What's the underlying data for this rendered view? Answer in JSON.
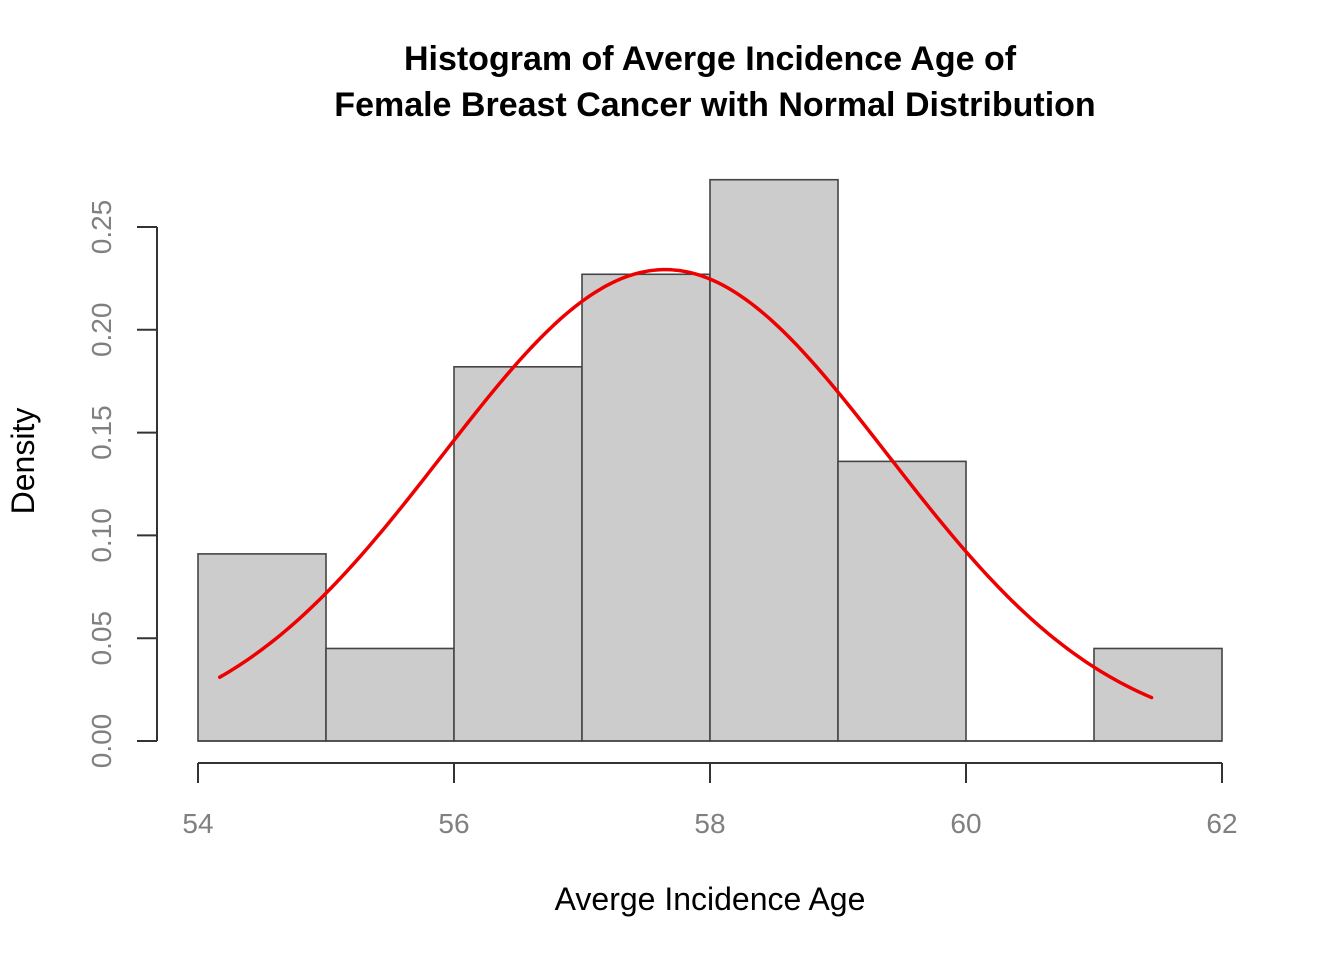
{
  "chart_data": {
    "type": "bar",
    "title": [
      "Histogram of Averge Incidence Age of",
      "Female Breast Cancer with Normal Distribution"
    ],
    "xlabel": "Averge Incidence Age",
    "ylabel": "Density",
    "xlim": [
      54,
      62
    ],
    "ylim": [
      0,
      0.25
    ],
    "x_ticks": [
      "54",
      "56",
      "58",
      "60",
      "62"
    ],
    "y_ticks": [
      "0.00",
      "0.05",
      "0.10",
      "0.15",
      "0.20",
      "0.25"
    ],
    "bins": [
      {
        "start": 54,
        "end": 55,
        "density": 0.091
      },
      {
        "start": 55,
        "end": 56,
        "density": 0.045
      },
      {
        "start": 56,
        "end": 57,
        "density": 0.182
      },
      {
        "start": 57,
        "end": 58,
        "density": 0.227
      },
      {
        "start": 58,
        "end": 59,
        "density": 0.273
      },
      {
        "start": 59,
        "end": 60,
        "density": 0.136
      },
      {
        "start": 60,
        "end": 61,
        "density": 0.0
      },
      {
        "start": 61,
        "end": 62,
        "density": 0.045
      }
    ],
    "normal_curve": {
      "mean": 57.65,
      "sd": 1.74,
      "x_range": [
        54.17,
        61.45
      ]
    },
    "colors": {
      "bar_fill": "#cccccc",
      "bar_border": "#444444",
      "curve": "#ee0000"
    },
    "grid": false,
    "legend": "none"
  }
}
